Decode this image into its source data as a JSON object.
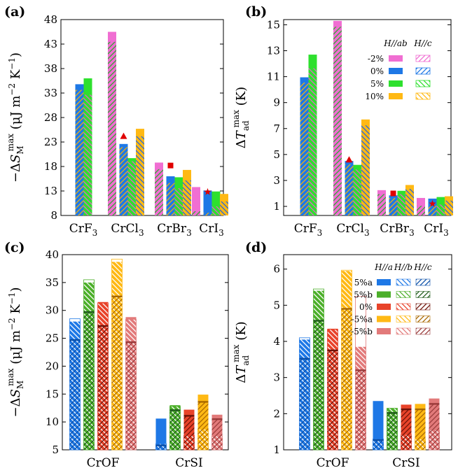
{
  "colors": {
    "blue": "#1e78e6",
    "green": "#2ee02e",
    "pink": "#f06ed2",
    "yellow": "#ffb914",
    "red": "#e8432a",
    "salmon": "#e27a7a",
    "olive": "#4caf2a",
    "darkred": "#8a1c10",
    "hatch_blue": "#2266dd",
    "hatch_yellow": "#f0b010",
    "hatch_green": "#30a830",
    "hatch_pink": "#e266c6",
    "hatch_darkred": "#8a1c10",
    "marker_red": "#e00000"
  },
  "chart_data": [
    {
      "panel": "(a)",
      "type": "bar",
      "ylabel_parts": [
        "−Δ",
        "S",
        "M",
        "max",
        " (μJ m",
        "−2",
        " K",
        "−1",
        ")"
      ],
      "ylim": [
        8,
        48
      ],
      "yticks": [
        8,
        13,
        18,
        23,
        28,
        33,
        38,
        43,
        48
      ],
      "categories": [
        {
          "base": "CrF",
          "sub": "3"
        },
        {
          "base": "CrCl",
          "sub": "3"
        },
        {
          "base": "CrBr",
          "sub": "3"
        },
        {
          "base": "CrI",
          "sub": "3"
        }
      ],
      "series_labels": [
        "-2%",
        "0%",
        "5%",
        "10%"
      ],
      "series_colors": [
        "#f06ed2",
        "#1e78e6",
        "#2ee02e",
        "#ffb914"
      ],
      "hatch_colors": [
        "#30a830",
        "#f0b010",
        "#e266c6",
        "#2266dd"
      ],
      "hatch_dirs": [
        "/",
        "/",
        "\\",
        "\\"
      ],
      "legend_headers": [
        "H//ab",
        "H//c"
      ],
      "bars": [
        {
          "cat": 0,
          "s": 1,
          "ab": 34.8,
          "c": 33.8
        },
        {
          "cat": 0,
          "s": 2,
          "ab": 36.0,
          "c": 32.8
        },
        {
          "cat": 1,
          "s": 0,
          "ab": 45.5,
          "c": 43.6
        },
        {
          "cat": 1,
          "s": 1,
          "ab": 22.6,
          "c": 22.1
        },
        {
          "cat": 1,
          "s": 2,
          "ab": 19.7,
          "c": 19.2
        },
        {
          "cat": 1,
          "s": 3,
          "ab": 25.7,
          "c": 24.3
        },
        {
          "cat": 2,
          "s": 0,
          "ab": 18.8,
          "c": 17.6
        },
        {
          "cat": 2,
          "s": 1,
          "ab": 16.0,
          "c": 14.8
        },
        {
          "cat": 2,
          "s": 2,
          "ab": 15.8,
          "c": 13.7
        },
        {
          "cat": 2,
          "s": 3,
          "ab": 17.3,
          "c": 15.3
        },
        {
          "cat": 3,
          "s": 0,
          "ab": 13.8,
          "c": 9.0
        },
        {
          "cat": 3,
          "s": 1,
          "ab": 13.1,
          "c": 8.7
        },
        {
          "cat": 3,
          "s": 2,
          "ab": 12.9,
          "c": 10.0
        },
        {
          "cat": 3,
          "s": 3,
          "ab": 12.4,
          "c": 11.0
        }
      ],
      "markers": [
        {
          "cat": 1,
          "s": 1,
          "value": 24.2,
          "shape": "triangle"
        },
        {
          "cat": 2,
          "s": 1,
          "value": 18.2,
          "shape": "square"
        },
        {
          "cat": 3,
          "s": 1,
          "value": 12.8,
          "shape": "star"
        }
      ]
    },
    {
      "panel": "(b)",
      "type": "bar",
      "ylabel_parts": [
        "Δ",
        "T",
        "ad",
        "max",
        " (K)"
      ],
      "ylim": [
        0.3,
        15.4
      ],
      "yticks": [
        1,
        3,
        5,
        7,
        9,
        11,
        13,
        15
      ],
      "categories": [
        {
          "base": "CrF",
          "sub": "3"
        },
        {
          "base": "CrCl",
          "sub": "3"
        },
        {
          "base": "CrBr",
          "sub": "3"
        },
        {
          "base": "CrI",
          "sub": "3"
        }
      ],
      "series_labels": [
        "-2%",
        "0%",
        "5%",
        "10%"
      ],
      "series_colors": [
        "#f06ed2",
        "#1e78e6",
        "#2ee02e",
        "#ffb914"
      ],
      "hatch_colors": [
        "#30a830",
        "#f0b010",
        "#e266c6",
        "#2266dd"
      ],
      "hatch_dirs": [
        "/",
        "/",
        "\\",
        "\\"
      ],
      "legend_headers": [
        "H//ab",
        "H//c"
      ],
      "bars": [
        {
          "cat": 0,
          "s": 1,
          "ab": 10.95,
          "c": 10.6
        },
        {
          "cat": 0,
          "s": 2,
          "ab": 12.7,
          "c": 11.7
        },
        {
          "cat": 1,
          "s": 0,
          "ab": 15.3,
          "c": 14.9
        },
        {
          "cat": 1,
          "s": 1,
          "ab": 4.5,
          "c": 4.3
        },
        {
          "cat": 1,
          "s": 2,
          "ab": 4.2,
          "c": 3.9
        },
        {
          "cat": 1,
          "s": 3,
          "ab": 7.7,
          "c": 7.3
        },
        {
          "cat": 2,
          "s": 0,
          "ab": 2.25,
          "c": 2.0
        },
        {
          "cat": 2,
          "s": 1,
          "ab": 1.85,
          "c": 1.7
        },
        {
          "cat": 2,
          "s": 2,
          "ab": 2.2,
          "c": 2.0
        },
        {
          "cat": 2,
          "s": 3,
          "ab": 2.65,
          "c": 2.4
        },
        {
          "cat": 3,
          "s": 0,
          "ab": 1.65,
          "c": 1.1
        },
        {
          "cat": 3,
          "s": 1,
          "ab": 1.6,
          "c": 1.1
        },
        {
          "cat": 3,
          "s": 2,
          "ab": 1.72,
          "c": 1.2
        },
        {
          "cat": 3,
          "s": 3,
          "ab": 1.78,
          "c": 1.5
        }
      ],
      "markers": [
        {
          "cat": 1,
          "s": 1,
          "value": 4.6,
          "shape": "triangle"
        },
        {
          "cat": 2,
          "s": 1,
          "value": 2.0,
          "shape": "square"
        },
        {
          "cat": 3,
          "s": 1,
          "value": 1.2,
          "shape": "star"
        }
      ]
    },
    {
      "panel": "(c)",
      "type": "bar",
      "ylabel_parts": [
        "−Δ",
        "S",
        "M",
        "max",
        " (μJ m",
        "−2",
        " K",
        "−1",
        ")"
      ],
      "ylim": [
        5,
        40
      ],
      "yticks": [
        5,
        10,
        15,
        20,
        25,
        30,
        35,
        40
      ],
      "categories": [
        {
          "base": "CrOF",
          "sub": ""
        },
        {
          "base": "CrSI",
          "sub": ""
        }
      ],
      "series_labels": [
        "5%a",
        "5%b",
        "0%",
        "-5%a",
        "-5%b"
      ],
      "series_colors": [
        "#1e78e6",
        "#4caf2a",
        "#e8432a",
        "#ffb914",
        "#e27a7a"
      ],
      "legend_headers": [
        "H//a",
        "H//b",
        "H//c"
      ],
      "bars": [
        {
          "cat": 0,
          "s": 0,
          "a": 28.0,
          "b": 28.5,
          "c": 24.7
        },
        {
          "cat": 0,
          "s": 1,
          "a": 35.0,
          "b": 35.5,
          "c": 29.7
        },
        {
          "cat": 0,
          "s": 2,
          "a": 31.5,
          "b": 31.3,
          "c": 27.2
        },
        {
          "cat": 0,
          "s": 3,
          "a": 38.7,
          "b": 39.2,
          "c": 32.5
        },
        {
          "cat": 0,
          "s": 4,
          "a": 28.8,
          "b": 28.4,
          "c": 24.3
        },
        {
          "cat": 1,
          "s": 0,
          "a": 10.6,
          "b": 6.1,
          "c": 5.8
        },
        {
          "cat": 1,
          "s": 1,
          "a": 13.0,
          "b": 12.8,
          "c": 12.1
        },
        {
          "cat": 1,
          "s": 2,
          "a": 12.2,
          "b": 7.6,
          "c": 11.1
        },
        {
          "cat": 1,
          "s": 3,
          "a": 14.9,
          "b": 8.7,
          "c": 13.6
        },
        {
          "cat": 1,
          "s": 4,
          "a": 11.3,
          "b": 7.5,
          "c": 10.5
        }
      ]
    },
    {
      "panel": "(d)",
      "type": "bar",
      "ylabel_parts": [
        "Δ",
        "T",
        "ad",
        "max",
        " (K)"
      ],
      "ylim": [
        1,
        6.4
      ],
      "yticks": [
        1,
        2,
        3,
        4,
        5,
        6
      ],
      "categories": [
        {
          "base": "CrOF",
          "sub": ""
        },
        {
          "base": "CrSI",
          "sub": ""
        }
      ],
      "series_labels": [
        "5%a",
        "5%b",
        "0%",
        "-5%a",
        "-5%b"
      ],
      "series_colors": [
        "#1e78e6",
        "#4caf2a",
        "#e8432a",
        "#ffb914",
        "#e27a7a"
      ],
      "legend_headers": [
        "H//a",
        "H//b",
        "H//c"
      ],
      "bars": [
        {
          "cat": 0,
          "s": 0,
          "a": 4.05,
          "b": 4.1,
          "c": 3.52
        },
        {
          "cat": 0,
          "s": 1,
          "a": 5.4,
          "b": 5.45,
          "c": 4.57
        },
        {
          "cat": 0,
          "s": 2,
          "a": 4.35,
          "b": 4.33,
          "c": 3.75
        },
        {
          "cat": 0,
          "s": 3,
          "a": 5.95,
          "b": 5.97,
          "c": 4.9
        },
        {
          "cat": 0,
          "s": 4,
          "a": 3.85,
          "b": 5.25,
          "c": 3.2
        },
        {
          "cat": 1,
          "s": 0,
          "a": 2.35,
          "b": 1.3,
          "c": 1.27
        },
        {
          "cat": 1,
          "s": 1,
          "a": 2.15,
          "b": 2.15,
          "c": 2.02
        },
        {
          "cat": 1,
          "s": 2,
          "a": 2.25,
          "b": 1.42,
          "c": 2.12
        },
        {
          "cat": 1,
          "s": 3,
          "a": 2.27,
          "b": 1.3,
          "c": 2.12
        },
        {
          "cat": 1,
          "s": 4,
          "a": 2.42,
          "b": 1.55,
          "c": 2.27
        }
      ]
    }
  ]
}
